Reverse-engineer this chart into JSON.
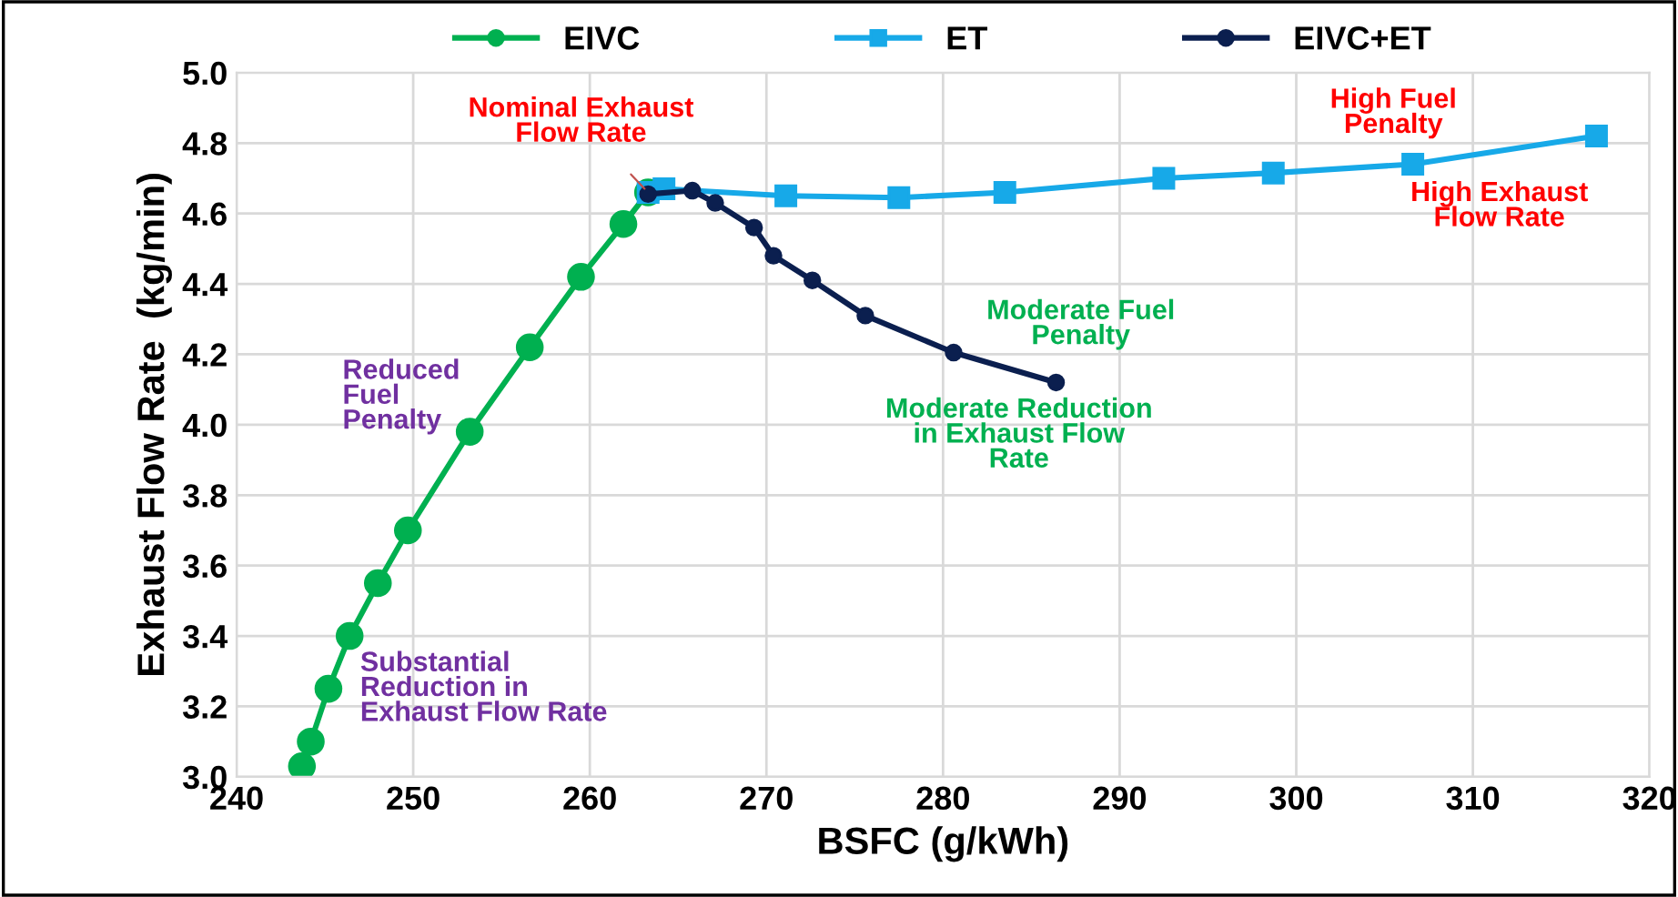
{
  "chart_data": {
    "type": "line",
    "xlabel": "BSFC (g/kWh)",
    "ylabel": "Exhaust Flow Rate  (kg/min)",
    "xlim": [
      240,
      320
    ],
    "xticks": [
      240,
      250,
      260,
      270,
      280,
      290,
      300,
      310,
      320
    ],
    "ylim": [
      3.0,
      5.0
    ],
    "yticks": [
      {
        "value": 3.0,
        "label": "3.0"
      },
      {
        "value": 3.2,
        "label": "3.2"
      },
      {
        "value": 3.4,
        "label": "3.4"
      },
      {
        "value": 3.6,
        "label": "3.6"
      },
      {
        "value": 3.8,
        "label": "3.8"
      },
      {
        "value": 4.0,
        "label": "4.0"
      },
      {
        "value": 4.2,
        "label": "4.2"
      },
      {
        "value": 4.4,
        "label": "4.4"
      },
      {
        "value": 4.6,
        "label": "4.6"
      },
      {
        "value": 4.8,
        "label": "4.8"
      },
      {
        "value": 5.0,
        "label": "5.0"
      }
    ],
    "grid": true,
    "legend": "top",
    "line_style": "solid",
    "series": [
      {
        "name": "EIVC",
        "color": "#00b050",
        "marker": "circle",
        "x": [
          243.7,
          244.2,
          245.2,
          246.4,
          248.0,
          249.7,
          253.2,
          256.6,
          259.5,
          261.9,
          263.3
        ],
        "values": [
          3.03,
          3.1,
          3.25,
          3.4,
          3.55,
          3.7,
          3.98,
          4.22,
          4.42,
          4.57,
          4.66
        ]
      },
      {
        "name": "ET",
        "color": "#17a9e8",
        "marker": "square",
        "x": [
          263.3,
          264.2,
          271.1,
          277.5,
          283.5,
          292.5,
          298.7,
          306.6,
          317.0
        ],
        "values": [
          4.66,
          4.67,
          4.65,
          4.645,
          4.66,
          4.7,
          4.715,
          4.74,
          4.82
        ]
      },
      {
        "name": "EIVC+ET",
        "color": "#0b1f4f",
        "marker": "circle",
        "x": [
          263.3,
          265.8,
          267.1,
          269.3,
          270.4,
          272.6,
          275.6,
          280.6,
          286.4
        ],
        "values": [
          4.655,
          4.665,
          4.63,
          4.56,
          4.48,
          4.41,
          4.31,
          4.205,
          4.12
        ]
      }
    ],
    "annotations": [
      {
        "text": "Nominal Exhaust\nFlow Rate",
        "x": 263.3,
        "y": 4.66
      },
      "High Fuel\nPenalty",
      "High Exhaust\nFlow Rate",
      "Moderate Fuel\nPenalty",
      "Moderate Reduction\nin Exhaust Flow\nRate",
      "Reduced\nFuel\nPenalty",
      "Substantial\nReduction in\nExhaust Flow Rate"
    ]
  }
}
